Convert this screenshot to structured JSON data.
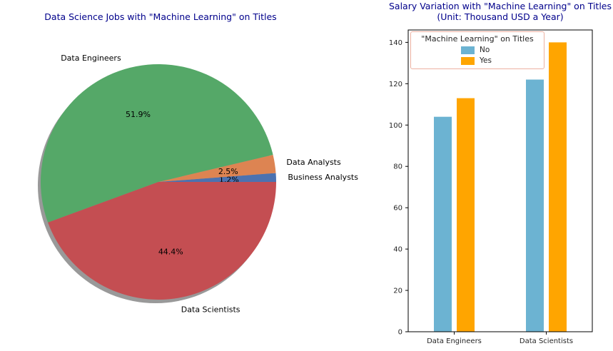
{
  "chart_data": [
    {
      "type": "pie",
      "title": "Data Science Jobs with \"Machine Learning\" on Titles",
      "title_color": "#00008b",
      "start_angle": 0,
      "direction": "counterclockwise",
      "shadow": true,
      "slices": [
        {
          "label": "Business Analysts",
          "value": 1.2,
          "pct_label": "1.2%",
          "color": "#4c72b0"
        },
        {
          "label": "Data Analysts",
          "value": 2.5,
          "pct_label": "2.5%",
          "color": "#dd8452"
        },
        {
          "label": "Data Engineers",
          "value": 51.9,
          "pct_label": "51.9%",
          "color": "#55a868"
        },
        {
          "label": "Data Scientists",
          "value": 44.4,
          "pct_label": "44.4%",
          "color": "#c44e52"
        }
      ]
    },
    {
      "type": "bar",
      "title": "Salary Variation with \"Machine Learning\" on Titles (Unit: Thousand USD a Year)",
      "title_line1": "Salary Variation with \"Machine Learning\" on Titles",
      "title_line2": "(Unit: Thousand USD a Year)",
      "title_color": "#00008b",
      "categories": [
        "Data Engineers",
        "Data Scientists"
      ],
      "series": [
        {
          "name": "No",
          "color": "#6cb3d2",
          "values": [
            104,
            122
          ]
        },
        {
          "name": "Yes",
          "color": "#ffa500",
          "values": [
            113,
            140
          ]
        }
      ],
      "ylim": [
        0,
        146
      ],
      "yticks": [
        0,
        20,
        40,
        60,
        80,
        100,
        120,
        140
      ],
      "legend_title": "\"Machine Learning\" on Titles",
      "legend_position": "upper left",
      "grid": false
    }
  ]
}
